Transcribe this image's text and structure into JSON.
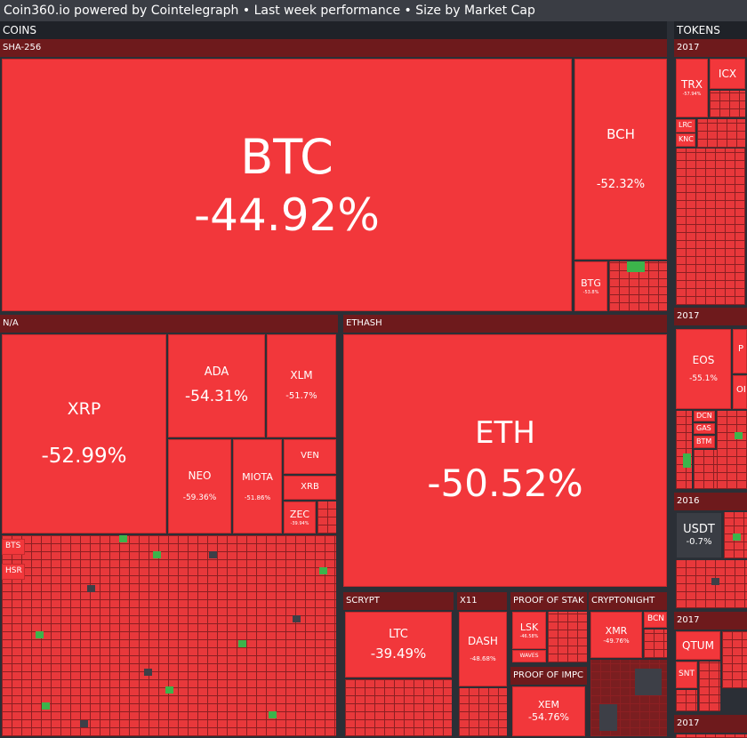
{
  "header": {
    "title": "Coin360.io powered by Cointelegraph • Last week performance • Size by Market Cap"
  },
  "sections": [
    {
      "title": "COINS",
      "groups": [
        {
          "name": "SHA-256",
          "tiles": [
            {
              "symbol": "BTC",
              "change": "-44.92%"
            },
            {
              "symbol": "BCH",
              "change": "-52.32%"
            },
            {
              "symbol": "BTG",
              "change": "-53.8%"
            }
          ]
        },
        {
          "name": "N/A",
          "tiles": [
            {
              "symbol": "XRP",
              "change": "-52.99%"
            },
            {
              "symbol": "ADA",
              "change": "-54.31%"
            },
            {
              "symbol": "XLM",
              "change": "-51.7%"
            },
            {
              "symbol": "NEO",
              "change": "-59.36%"
            },
            {
              "symbol": "MIOTA",
              "change": "-51.86%"
            },
            {
              "symbol": "VEN"
            },
            {
              "symbol": "XRB"
            },
            {
              "symbol": "ZEC",
              "change": "-39.94%"
            },
            {
              "symbol": "BTS"
            },
            {
              "symbol": "HSR"
            }
          ]
        },
        {
          "name": "ETHASH",
          "tiles": [
            {
              "symbol": "ETH",
              "change": "-50.52%"
            }
          ]
        },
        {
          "name": "SCRYPT",
          "tiles": [
            {
              "symbol": "LTC",
              "change": "-39.49%"
            }
          ]
        },
        {
          "name": "X11",
          "tiles": [
            {
              "symbol": "DASH",
              "change": "-48.68%"
            }
          ]
        },
        {
          "name": "PROOF OF STAK",
          "tiles": [
            {
              "symbol": "LSK",
              "change": "-46.58%"
            },
            {
              "symbol": "WAVES"
            }
          ]
        },
        {
          "name": "PROOF OF IMPC",
          "tiles": [
            {
              "symbol": "XEM",
              "change": "-54.76%"
            }
          ]
        },
        {
          "name": "CRYPTONIGHT",
          "tiles": [
            {
              "symbol": "XMR",
              "change": "-49.76%"
            },
            {
              "symbol": "BCN"
            }
          ]
        }
      ]
    },
    {
      "title": "TOKENS",
      "groups": [
        {
          "name": "2017",
          "tiles": [
            {
              "symbol": "TRX",
              "change": "-57.94%"
            },
            {
              "symbol": "ICX"
            },
            {
              "symbol": "LRC"
            },
            {
              "symbol": "KNC"
            }
          ]
        },
        {
          "name": "2017",
          "tiles": [
            {
              "symbol": "EOS",
              "change": "-55.1%"
            },
            {
              "symbol": "P"
            },
            {
              "symbol": "OI"
            },
            {
              "symbol": "DCN"
            },
            {
              "symbol": "GAS"
            },
            {
              "symbol": "BTM"
            }
          ]
        },
        {
          "name": "2016",
          "tiles": [
            {
              "symbol": "USDT",
              "change": "-0.7%"
            }
          ]
        },
        {
          "name": "2017",
          "tiles": [
            {
              "symbol": "QTUM"
            },
            {
              "symbol": "SNT"
            }
          ]
        },
        {
          "name": "2017",
          "tiles": []
        }
      ]
    }
  ]
}
